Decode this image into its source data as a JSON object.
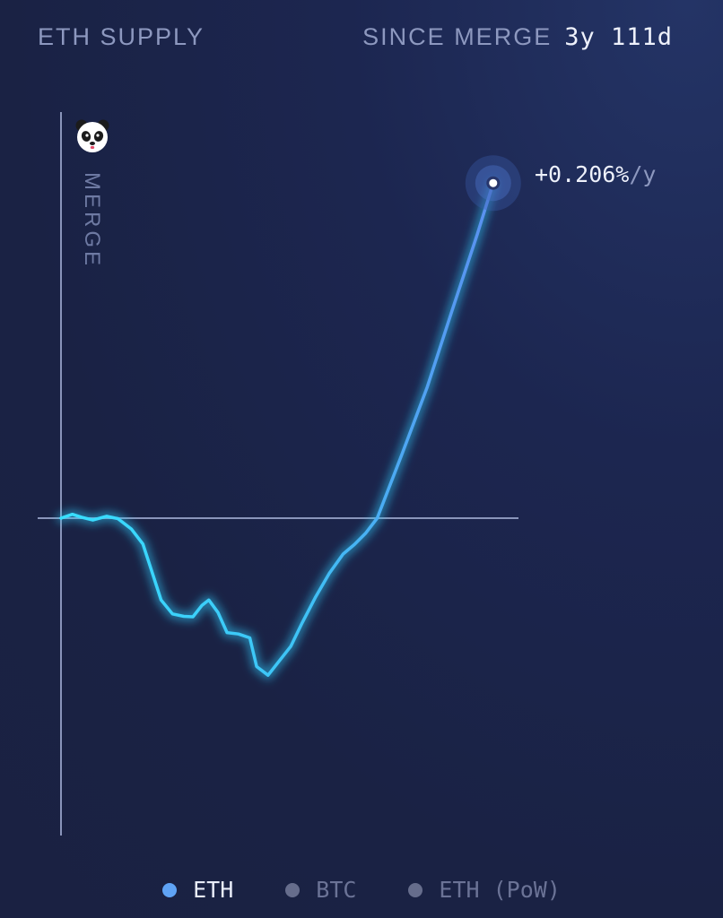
{
  "header": {
    "title": "ETH SUPPLY",
    "since_label": "SINCE MERGE",
    "duration": "3y 111d"
  },
  "merge_label": "MERGE",
  "marker_icon": "panda-face-icon",
  "current_rate": {
    "value": "+0.206%",
    "unit": "/y"
  },
  "legend": [
    {
      "label": "ETH",
      "active": true,
      "color": "#5fa3f5"
    },
    {
      "label": "BTC",
      "active": false,
      "color": "#666d8c"
    },
    {
      "label": "ETH (PoW)",
      "active": false,
      "color": "#666d8c"
    }
  ],
  "colors": {
    "line_start": "#38e0ff",
    "line_end": "#5b8ff0",
    "axis": "#8a95ba"
  },
  "chart_data": {
    "type": "line",
    "title": "ETH SUPPLY",
    "xlabel": "",
    "ylabel": "",
    "baseline": 0,
    "grid": false,
    "series": [
      {
        "name": "ETH",
        "x_unit": "days since merge",
        "y_unit": "supply change (relative)",
        "points": [
          [
            0,
            0.0
          ],
          [
            10,
            0.8
          ],
          [
            18,
            0.2
          ],
          [
            28,
            -0.4
          ],
          [
            40,
            0.4
          ],
          [
            50,
            -0.1
          ],
          [
            62,
            -2.3
          ],
          [
            72,
            -5.4
          ],
          [
            80,
            -11.2
          ],
          [
            88,
            -17.1
          ],
          [
            98,
            -20.0
          ],
          [
            108,
            -20.5
          ],
          [
            116,
            -20.6
          ],
          [
            124,
            -18.2
          ],
          [
            130,
            -17.1
          ],
          [
            138,
            -19.7
          ],
          [
            146,
            -23.9
          ],
          [
            156,
            -24.2
          ],
          [
            166,
            -25.0
          ],
          [
            172,
            -31.0
          ],
          [
            182,
            -32.8
          ],
          [
            192,
            -29.8
          ],
          [
            202,
            -26.8
          ],
          [
            212,
            -21.9
          ],
          [
            224,
            -16.4
          ],
          [
            236,
            -11.5
          ],
          [
            248,
            -7.5
          ],
          [
            258,
            -5.5
          ],
          [
            268,
            -3.1
          ],
          [
            278,
            0.0
          ],
          [
            300,
            13.5
          ],
          [
            322,
            27.4
          ],
          [
            344,
            43.5
          ],
          [
            366,
            59.3
          ],
          [
            380,
            70.0
          ]
        ]
      }
    ]
  }
}
